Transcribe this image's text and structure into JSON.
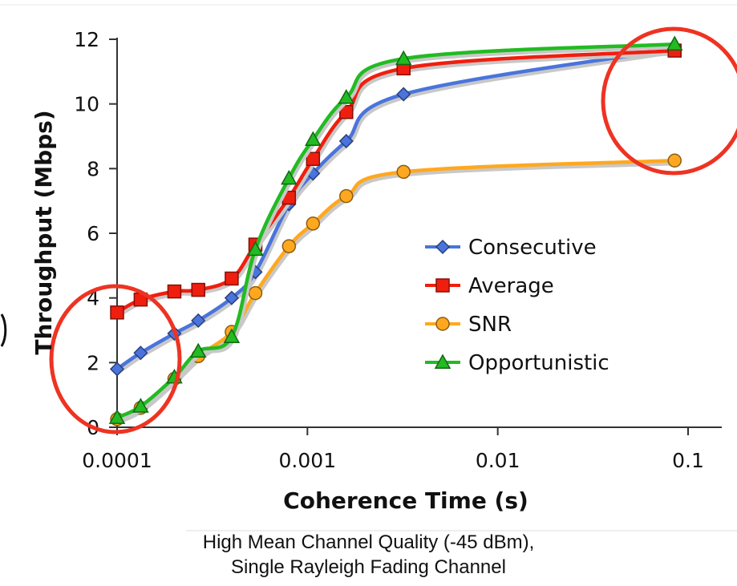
{
  "chart_data": {
    "type": "line",
    "xlabel": "Coherence Time (s)",
    "ylabel": "Throughput (Mbps)",
    "x_scale": "log",
    "xlim": [
      0.0001,
      0.1
    ],
    "ylim": [
      0,
      12
    ],
    "x_ticks": [
      0.0001,
      0.001,
      0.01,
      0.1
    ],
    "x_tick_labels": [
      "0.0001",
      "0.001",
      "0.01",
      "0.1"
    ],
    "y_ticks": [
      0,
      2,
      4,
      6,
      8,
      10,
      12
    ],
    "y_tick_labels": [
      "0",
      "2",
      "4",
      "6",
      "8",
      "10",
      "12"
    ],
    "grid": false,
    "legend_position": "right",
    "x": [
      0.0001,
      0.000133,
      0.0002,
      0.000267,
      0.0004,
      0.000533,
      0.0008,
      0.00107,
      0.0016,
      0.0032,
      0.085
    ],
    "series": [
      {
        "name": "Consecutive",
        "marker": "diamond",
        "color": "#4a74dc",
        "values": [
          1.8,
          2.3,
          2.9,
          3.3,
          4.0,
          4.8,
          6.9,
          7.85,
          8.85,
          10.3,
          11.7
        ]
      },
      {
        "name": "Average",
        "marker": "square",
        "color": "#f01e0e",
        "values": [
          3.55,
          3.95,
          4.2,
          4.25,
          4.6,
          5.65,
          7.1,
          8.3,
          9.75,
          11.1,
          11.65
        ]
      },
      {
        "name": "SNR",
        "marker": "circle",
        "color": "#ffa81f",
        "values": [
          0.25,
          0.6,
          1.5,
          2.2,
          2.95,
          4.15,
          5.6,
          6.3,
          7.15,
          7.9,
          8.25
        ]
      },
      {
        "name": "Opportunistic",
        "marker": "triangle",
        "color": "#22bb22",
        "values": [
          0.3,
          0.65,
          1.55,
          2.35,
          2.8,
          5.5,
          7.7,
          8.9,
          10.2,
          11.4,
          11.85
        ]
      }
    ],
    "annotations": {
      "circle_color": "#ee3322"
    }
  },
  "caption": {
    "line1": "High Mean Channel Quality (-45 dBm),",
    "line2": "Single Rayleigh Fading Channel"
  }
}
